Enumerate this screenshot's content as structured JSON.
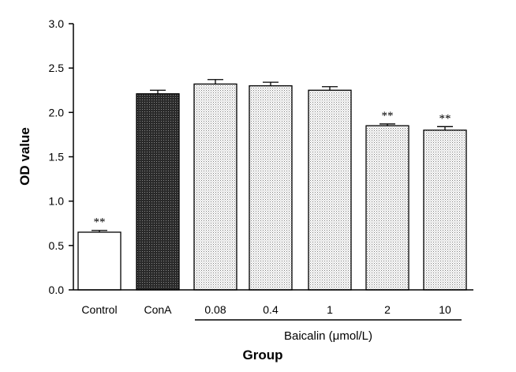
{
  "chart_data": {
    "type": "bar",
    "categories": [
      "Control",
      "ConA",
      "0.08",
      "0.4",
      "1",
      "2",
      "10"
    ],
    "values": [
      0.65,
      2.21,
      2.32,
      2.3,
      2.25,
      1.85,
      1.8
    ],
    "errors": [
      0.02,
      0.04,
      0.05,
      0.04,
      0.04,
      0.02,
      0.04
    ],
    "significance": [
      "**",
      "",
      "",
      "",
      "",
      "**",
      "**"
    ],
    "fills": [
      "white",
      "dark",
      "dotted",
      "dotted",
      "dotted",
      "dotted",
      "dotted"
    ],
    "ylabel": "OD value",
    "xlabel": "Group",
    "group_label": "Baicalin (μmol/L)",
    "yticks": [
      "0.0",
      "0.5",
      "1.0",
      "1.5",
      "2.0",
      "2.5",
      "3.0"
    ],
    "ylim": [
      0,
      3.0
    ]
  }
}
